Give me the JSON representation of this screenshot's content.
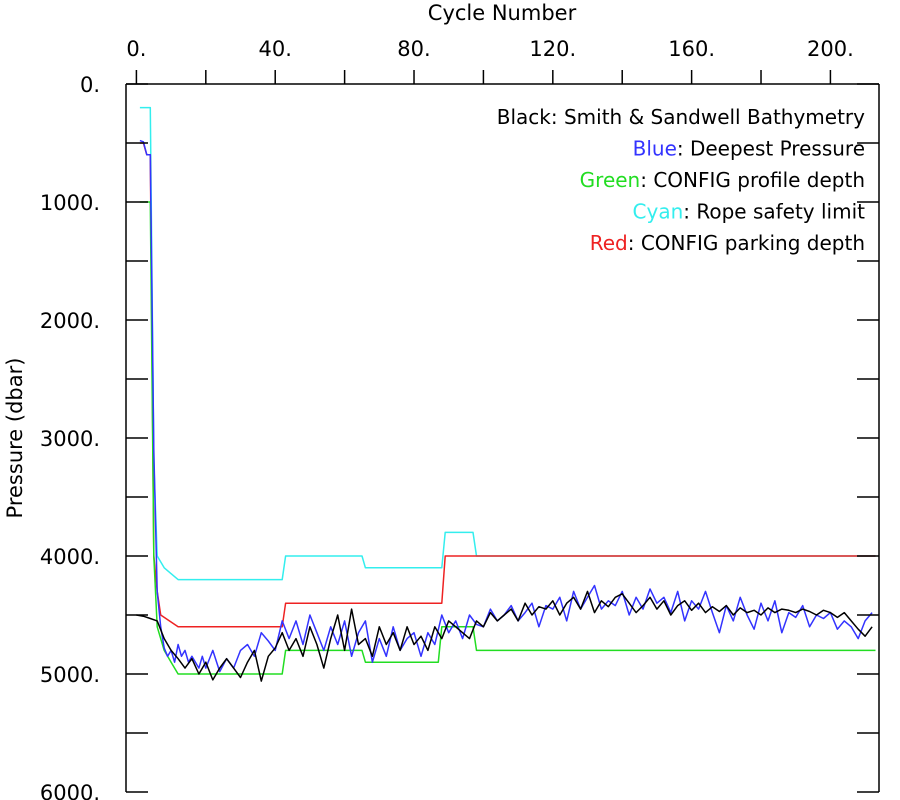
{
  "chart_data": {
    "type": "line",
    "xlabel": "Cycle Number",
    "ylabel": "Pressure (dbar)",
    "xlim": [
      -3,
      214
    ],
    "ylim": [
      0,
      6000
    ],
    "y_inverted": true,
    "x_axis_position": "top",
    "x_ticks": [
      0,
      40,
      80,
      120,
      160,
      200
    ],
    "x_tick_labels": [
      "0.",
      "40.",
      "80.",
      "120.",
      "160.",
      "200."
    ],
    "y_ticks": [
      0,
      1000,
      2000,
      3000,
      4000,
      5000,
      6000
    ],
    "y_tick_labels": [
      "0.",
      "1000.",
      "2000.",
      "3000.",
      "4000.",
      "5000.",
      "6000."
    ],
    "legend": [
      {
        "prefix": "Black",
        "rest": ": Smith & Sandwell Bathymetry",
        "color": "#000000"
      },
      {
        "prefix": "Blue",
        "rest": ": Deepest Pressure",
        "color": "#3333ff"
      },
      {
        "prefix": "Green",
        "rest": ": CONFIG profile depth",
        "color": "#22dd22"
      },
      {
        "prefix": "Cyan",
        "rest": ": Rope safety limit",
        "color": "#33eeee"
      },
      {
        "prefix": "Red",
        "rest": ": CONFIG parking depth",
        "color": "#ee2222"
      }
    ],
    "legend_position": "top-right",
    "series": [
      {
        "id": "cyan",
        "color": "#33eeee",
        "step": true,
        "x": [
          1,
          4,
          5,
          6,
          8,
          10,
          12,
          42,
          43,
          65,
          66,
          88,
          89,
          97,
          98,
          213
        ],
        "y": [
          200,
          200,
          3200,
          4000,
          4100,
          4150,
          4200,
          4200,
          4000,
          4000,
          4100,
          4100,
          3800,
          3800,
          4000,
          4000
        ]
      },
      {
        "id": "red",
        "color": "#ee2222",
        "step": true,
        "x": [
          1,
          2,
          3,
          4,
          5,
          6,
          7,
          12,
          42,
          43,
          88,
          89,
          97,
          98,
          213
        ],
        "y": [
          500,
          500,
          600,
          600,
          4000,
          4300,
          4500,
          4600,
          4600,
          4400,
          4400,
          4000,
          4000,
          4000,
          4000
        ]
      },
      {
        "id": "green",
        "color": "#22dd22",
        "step": true,
        "x": [
          1,
          4,
          5,
          6,
          8,
          10,
          12,
          42,
          43,
          65,
          66,
          87,
          88,
          97,
          98,
          213
        ],
        "y": [
          1000,
          1000,
          4000,
          4600,
          4800,
          4900,
          5000,
          5000,
          4800,
          4800,
          4900,
          4900,
          4600,
          4600,
          4800,
          4800
        ]
      },
      {
        "id": "blue",
        "color": "#3333ff",
        "step": false,
        "x": [
          1,
          2,
          3,
          4,
          5,
          6,
          7,
          8,
          9,
          10,
          11,
          12,
          13,
          14,
          15,
          16,
          17,
          18,
          19,
          20,
          22,
          24,
          26,
          28,
          30,
          32,
          34,
          36,
          38,
          40,
          42,
          44,
          46,
          48,
          50,
          52,
          54,
          56,
          58,
          60,
          62,
          64,
          66,
          68,
          70,
          72,
          74,
          76,
          78,
          80,
          82,
          84,
          86,
          88,
          90,
          92,
          94,
          96,
          98,
          100,
          102,
          104,
          106,
          108,
          110,
          112,
          114,
          116,
          118,
          120,
          122,
          124,
          126,
          128,
          130,
          132,
          134,
          136,
          138,
          140,
          142,
          144,
          146,
          148,
          150,
          152,
          154,
          156,
          158,
          160,
          162,
          164,
          166,
          168,
          170,
          172,
          174,
          176,
          178,
          180,
          182,
          184,
          186,
          188,
          190,
          192,
          194,
          196,
          198,
          200,
          202,
          204,
          206,
          208,
          210,
          212
        ],
        "y": [
          480,
          490,
          600,
          600,
          3100,
          4300,
          4600,
          4780,
          4850,
          4800,
          4900,
          4750,
          4850,
          4800,
          4900,
          4850,
          4900,
          4950,
          4850,
          4950,
          4800,
          4980,
          4870,
          4950,
          4800,
          4750,
          4850,
          4650,
          4720,
          4800,
          4550,
          4700,
          4550,
          4750,
          4500,
          4650,
          4800,
          4600,
          4750,
          4550,
          4850,
          4650,
          4550,
          4900,
          4700,
          4850,
          4600,
          4800,
          4700,
          4650,
          4850,
          4650,
          4750,
          4500,
          4650,
          4550,
          4700,
          4500,
          4580,
          4600,
          4450,
          4550,
          4500,
          4420,
          4550,
          4480,
          4400,
          4600,
          4420,
          4450,
          4350,
          4550,
          4300,
          4450,
          4350,
          4250,
          4450,
          4380,
          4420,
          4300,
          4500,
          4350,
          4450,
          4280,
          4400,
          4350,
          4480,
          4300,
          4550,
          4380,
          4450,
          4300,
          4480,
          4650,
          4420,
          4550,
          4350,
          4500,
          4620,
          4400,
          4550,
          4380,
          4650,
          4480,
          4520,
          4420,
          4600,
          4500,
          4530,
          4480,
          4620,
          4550,
          4600,
          4700,
          4550,
          4480
        ]
      },
      {
        "id": "black",
        "color": "#000000",
        "step": false,
        "x": [
          0,
          2,
          4,
          6,
          8,
          10,
          12,
          14,
          16,
          18,
          20,
          22,
          24,
          26,
          28,
          30,
          32,
          34,
          36,
          38,
          40,
          42,
          44,
          46,
          48,
          50,
          52,
          54,
          56,
          58,
          60,
          62,
          64,
          66,
          68,
          70,
          72,
          74,
          76,
          78,
          80,
          82,
          84,
          86,
          88,
          90,
          92,
          94,
          96,
          98,
          100,
          102,
          104,
          106,
          108,
          110,
          112,
          114,
          116,
          118,
          120,
          122,
          124,
          126,
          128,
          130,
          132,
          134,
          136,
          138,
          140,
          142,
          144,
          146,
          148,
          150,
          152,
          154,
          156,
          158,
          160,
          162,
          164,
          166,
          168,
          170,
          172,
          174,
          176,
          178,
          180,
          182,
          184,
          186,
          188,
          190,
          192,
          194,
          196,
          198,
          200,
          202,
          204,
          206,
          208,
          210,
          212
        ],
        "y": [
          4500,
          4510,
          4530,
          4550,
          4700,
          4800,
          4870,
          4950,
          4870,
          5000,
          4900,
          5050,
          4950,
          4870,
          4950,
          5030,
          4900,
          4800,
          5060,
          4850,
          4780,
          4650,
          4800,
          4700,
          4850,
          4600,
          4750,
          4950,
          4700,
          4500,
          4800,
          4450,
          4750,
          4700,
          4850,
          4600,
          4750,
          4650,
          4800,
          4600,
          4750,
          4680,
          4800,
          4600,
          4700,
          4550,
          4600,
          4650,
          4700,
          4550,
          4600,
          4480,
          4550,
          4500,
          4450,
          4550,
          4400,
          4500,
          4430,
          4450,
          4380,
          4500,
          4400,
          4350,
          4450,
          4300,
          4480,
          4380,
          4430,
          4350,
          4320,
          4400,
          4480,
          4420,
          4350,
          4450,
          4380,
          4500,
          4420,
          4380,
          4460,
          4400,
          4480,
          4430,
          4470,
          4420,
          4500,
          4440,
          4480,
          4460,
          4500,
          4440,
          4480,
          4450,
          4460,
          4480,
          4450,
          4470,
          4500,
          4460,
          4480,
          4520,
          4480,
          4550,
          4620,
          4680,
          4600
        ]
      }
    ]
  }
}
